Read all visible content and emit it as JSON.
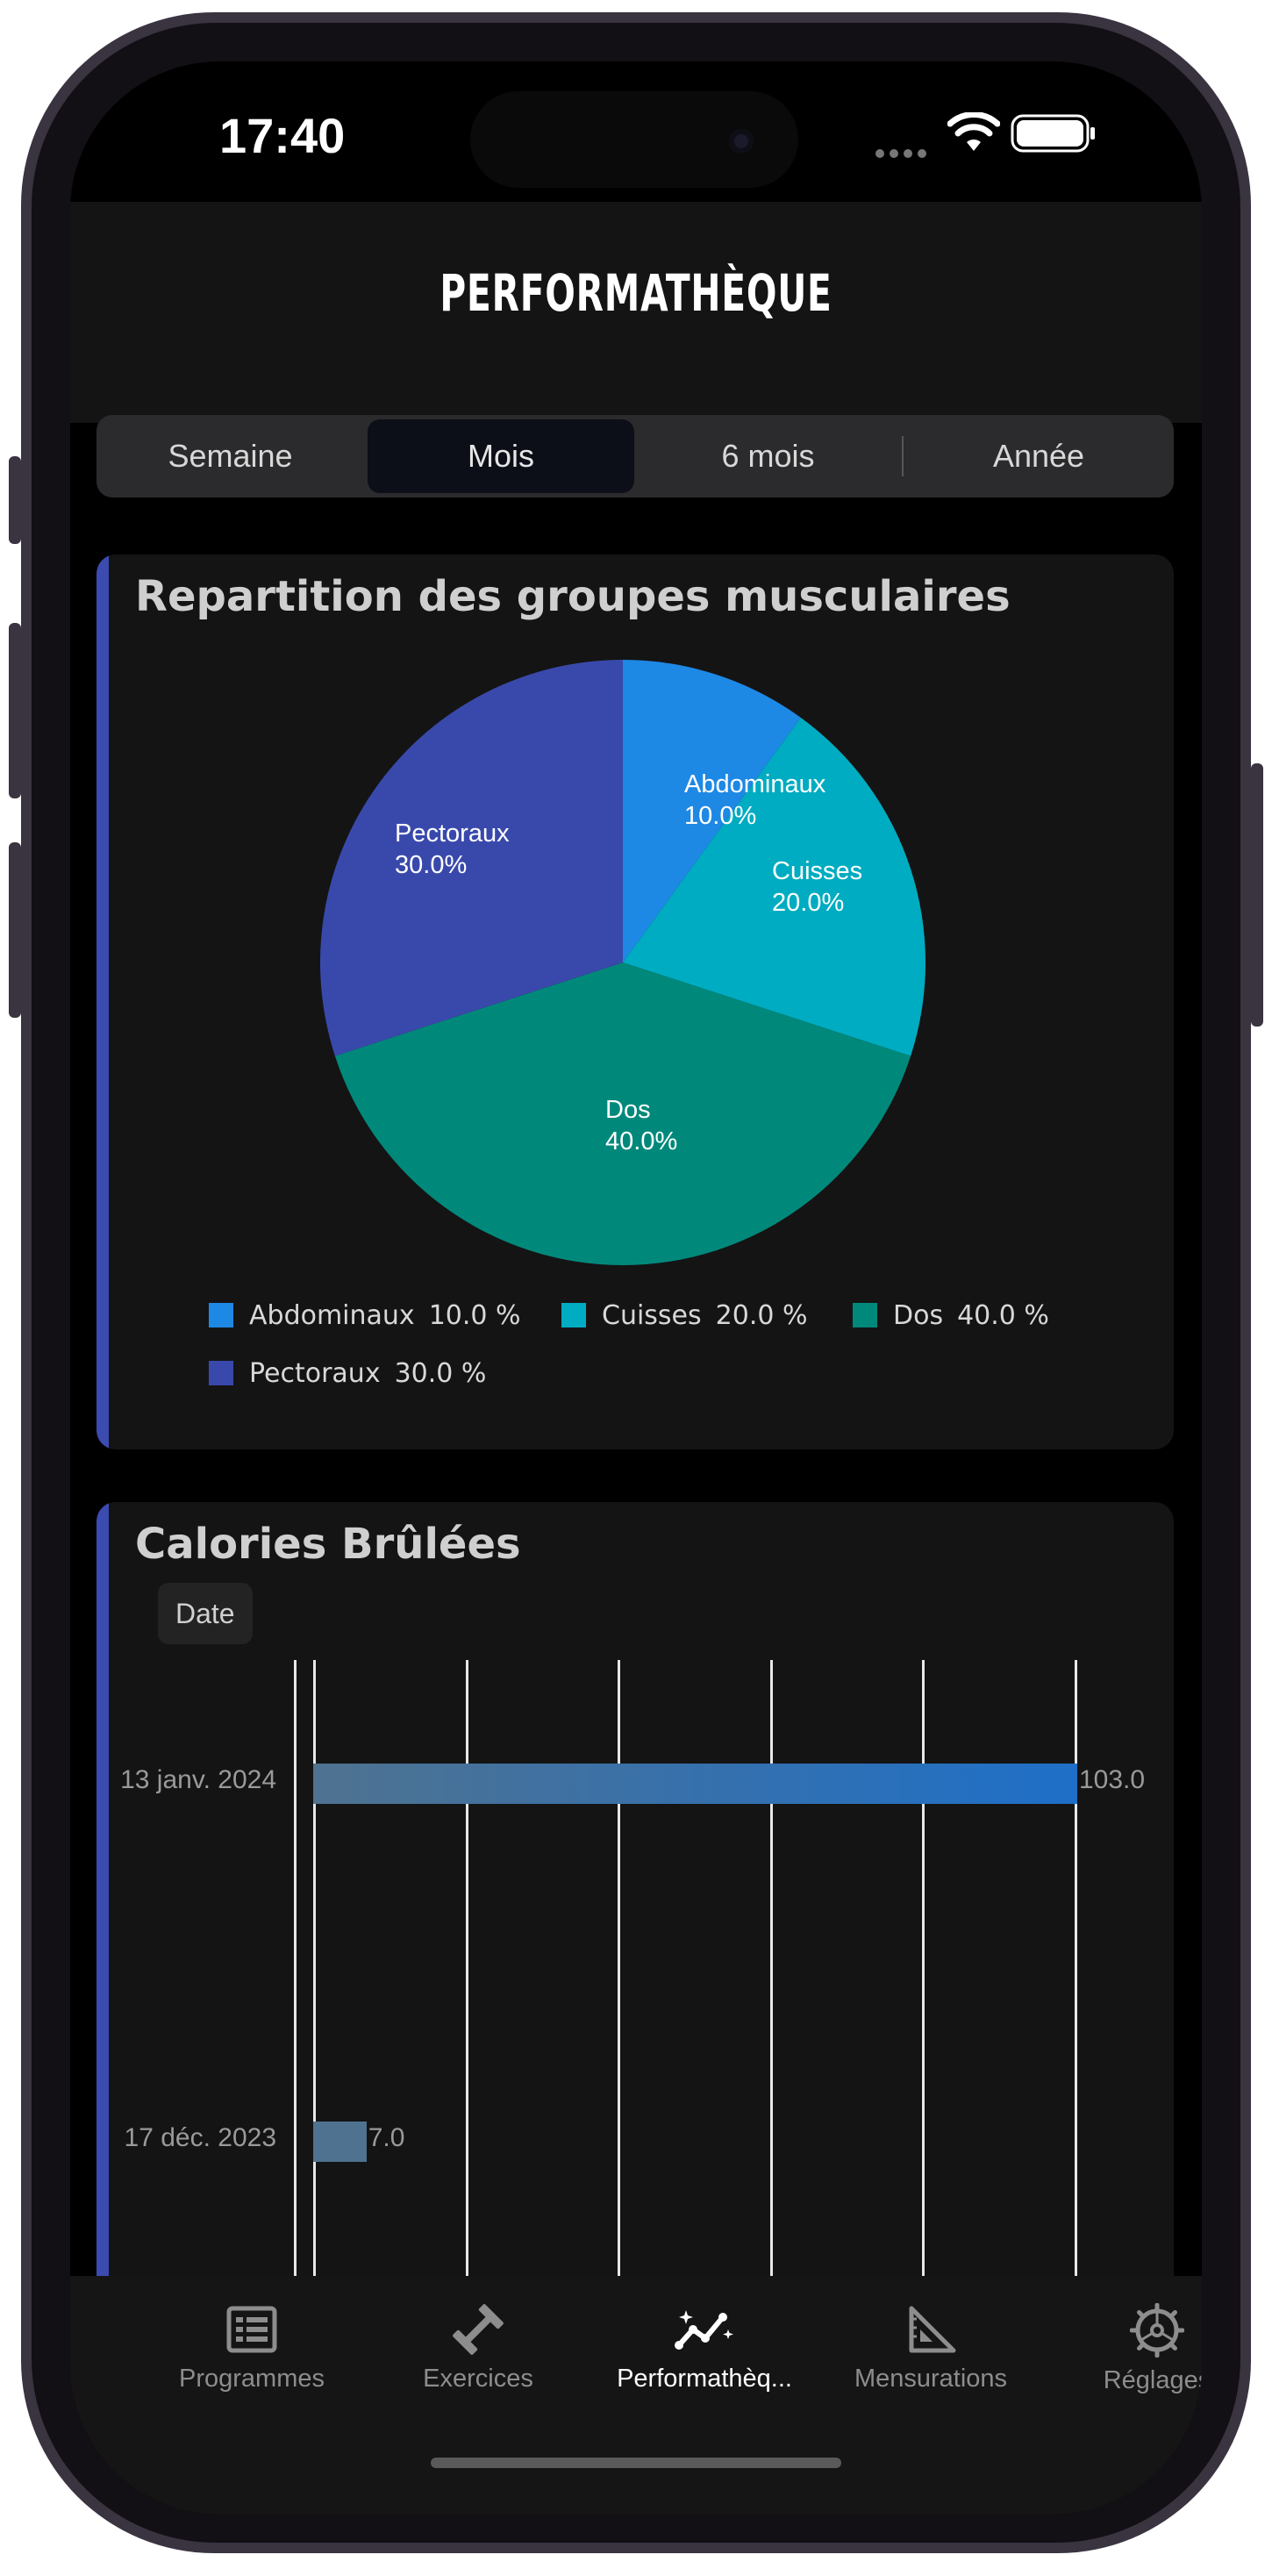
{
  "status_bar": {
    "time": "17:40"
  },
  "header": {
    "title": "PERFORMATHÈQUE"
  },
  "period_selector": {
    "options": [
      "Semaine",
      "Mois",
      "6 mois",
      "Année"
    ],
    "selected": "Mois"
  },
  "muscle_card": {
    "title": "Repartition des groupes musculaires",
    "slice_labels": [
      {
        "name": "Abdominaux",
        "pct": "10.0%"
      },
      {
        "name": "Cuisses",
        "pct": "20.0%"
      },
      {
        "name": "Dos",
        "pct": "40.0%"
      },
      {
        "name": "Pectoraux",
        "pct": "30.0%"
      }
    ],
    "legend": [
      {
        "name": "Abdominaux",
        "value": "10.0 %"
      },
      {
        "name": "Cuisses",
        "value": "20.0 %"
      },
      {
        "name": "Dos",
        "value": "40.0 %"
      },
      {
        "name": "Pectoraux",
        "value": "30.0 %"
      }
    ]
  },
  "calories_card": {
    "title": "Calories Brûlées",
    "axis_chip": "Date",
    "bar_labels": [
      {
        "date": "13 janv. 2024",
        "value": "103.0"
      },
      {
        "date": "17 déc. 2023",
        "value": "7.0"
      }
    ]
  },
  "tab_bar": {
    "items": [
      {
        "label": "Programmes",
        "icon": "list-icon"
      },
      {
        "label": "Exercices",
        "icon": "dumbbell-icon"
      },
      {
        "label": "Performathèq...",
        "icon": "chart-line-icon"
      },
      {
        "label": "Mensurations",
        "icon": "ruler-triangle-icon"
      },
      {
        "label": "Réglages",
        "icon": "gear-icon"
      }
    ],
    "selected": "Performathèq..."
  },
  "chart_data": [
    {
      "type": "pie",
      "title": "Repartition des groupes musculaires",
      "categories": [
        "Abdominaux",
        "Cuisses",
        "Dos",
        "Pectoraux"
      ],
      "values": [
        10.0,
        20.0,
        40.0,
        30.0
      ],
      "colors": [
        "#1e88e5",
        "#00acc1",
        "#00897b",
        "#3949ab"
      ],
      "legend_position": "bottom"
    },
    {
      "type": "bar",
      "orientation": "horizontal",
      "title": "Calories Brûlées",
      "xlabel": "",
      "ylabel": "Date",
      "categories": [
        "13 janv. 2024",
        "17 déc. 2023"
      ],
      "values": [
        103.0,
        7.0
      ],
      "xlim": [
        0,
        100
      ],
      "grid": true,
      "colors": [
        "#1e6fc8"
      ]
    }
  ]
}
